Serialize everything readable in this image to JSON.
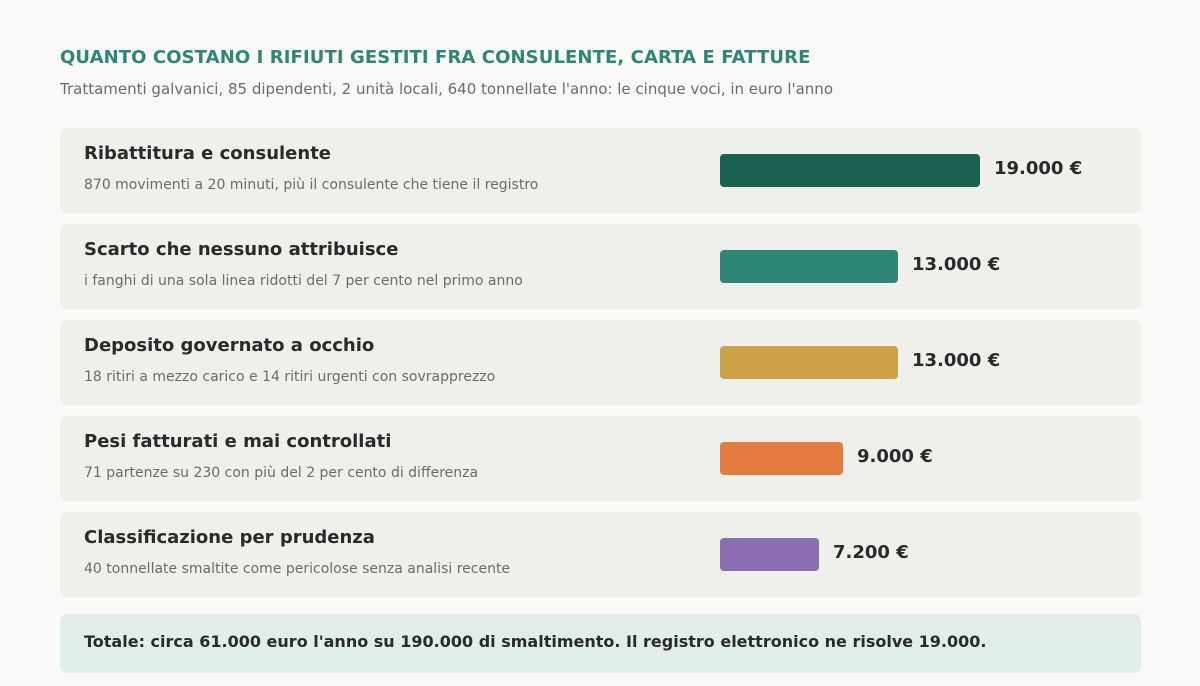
{
  "header": {
    "title": "QUANTO COSTANO I RIFIUTI GESTITI FRA CONSULENTE, CARTA E FATTURE",
    "subtitle": "Trattamenti galvanici, 85 dipendenti, 2 unità locali, 640 tonnellate l'anno: le cinque voci, in euro l'anno"
  },
  "chart_data": {
    "type": "bar",
    "orientation": "horizontal",
    "title": "QUANTO COSTANO I RIFIUTI GESTITI FRA CONSULENTE, CARTA E FATTURE",
    "subtitle": "Trattamenti galvanici, 85 dipendenti, 2 unità locali, 640 tonnellate l'anno: le cinque voci, in euro l'anno",
    "items": [
      {
        "label": "Ribattitura e consulente",
        "description": "870 movimenti a 20 minuti, più il consulente che tiene il registro",
        "value": 19000,
        "value_label": "19.000 €",
        "color": "#1b6153"
      },
      {
        "label": "Scarto che nessuno attribuisce",
        "description": "i fanghi di una sola linea ridotti del 7 per cento nel primo anno",
        "value": 13000,
        "value_label": "13.000 €",
        "color": "#2e8578"
      },
      {
        "label": "Deposito governato a occhio",
        "description": "18 ritiri a mezzo carico e 14 ritiri urgenti con sovrapprezzo",
        "value": 13000,
        "value_label": "13.000 €",
        "color": "#cba24a"
      },
      {
        "label": "Pesi fatturati e mai controllati",
        "description": "71 partenze su 230 con più del 2 per cento di differenza",
        "value": 9000,
        "value_label": "9.000 €",
        "color": "#e27c41"
      },
      {
        "label": "Classificazione per prudenza",
        "description": "40 tonnellate smaltite come pericolose senza analisi recente",
        "value": 7200,
        "value_label": "7.200 €",
        "color": "#8c6db2"
      }
    ]
  },
  "footer": {
    "total": "Totale: circa 61.000 euro l'anno su 190.000 di smaltimento. Il registro elettronico ne risolve 19.000."
  }
}
